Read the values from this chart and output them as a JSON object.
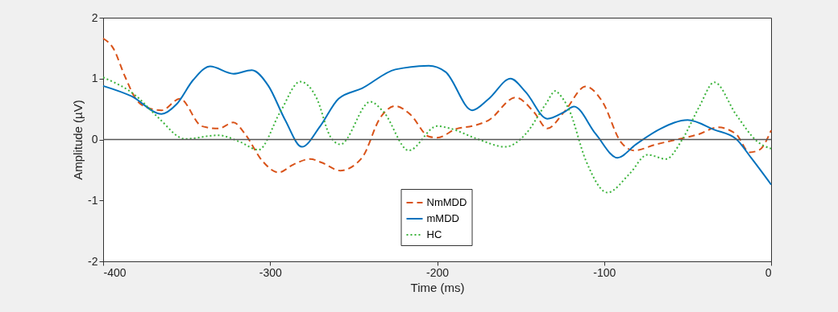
{
  "chart_data": {
    "type": "line",
    "xlabel": "Time (ms)",
    "ylabel": "Amplitude (µV)",
    "xlim": [
      -400,
      0
    ],
    "xticks": [
      -400,
      -300,
      -200,
      -100,
      0
    ],
    "ylim": [
      -2,
      2
    ],
    "yticks": [
      -2,
      -1,
      0,
      1,
      2
    ],
    "grid": false,
    "legend": "bottom",
    "marker": "none",
    "ref_lines": [
      {
        "axis": "y",
        "value": 0,
        "color": "#555555"
      }
    ],
    "series": [
      {
        "name": "NmMDD",
        "color": "#d95319",
        "line_style": "dashed",
        "x": [
          -400,
          -394,
          -387,
          -380,
          -372,
          -365,
          -354,
          -341,
          -331,
          -322,
          -315,
          -305,
          -295,
          -286,
          -276,
          -269,
          -258,
          -245,
          -234,
          -225,
          -216,
          -205,
          -200,
          -188,
          -179,
          -169,
          -153,
          -142,
          -134,
          -124,
          -111,
          -101,
          -90,
          -82,
          -69,
          -58,
          -43,
          -32,
          -21,
          -13,
          -7,
          0
        ],
        "values": [
          1.66,
          1.5,
          1.04,
          0.65,
          0.51,
          0.48,
          0.67,
          0.22,
          0.18,
          0.28,
          0.09,
          -0.34,
          -0.54,
          -0.41,
          -0.32,
          -0.38,
          -0.51,
          -0.3,
          0.36,
          0.55,
          0.41,
          0.05,
          0.03,
          0.18,
          0.22,
          0.32,
          0.69,
          0.45,
          0.18,
          0.45,
          0.87,
          0.62,
          -0.04,
          -0.18,
          -0.08,
          -0.01,
          0.09,
          0.2,
          0.09,
          -0.21,
          -0.17,
          0.15
        ]
      },
      {
        "name": "mMDD",
        "color": "#0072bd",
        "line_style": "solid",
        "x": [
          -400,
          -383,
          -365,
          -356,
          -346,
          -336,
          -322,
          -311,
          -301,
          -291,
          -281,
          -270,
          -259,
          -245,
          -225,
          -205,
          -195,
          -179,
          -169,
          -156,
          -147,
          -134,
          -124,
          -118,
          -105,
          -92,
          -81,
          -66,
          -50,
          -34,
          -21,
          -12,
          0
        ],
        "values": [
          0.88,
          0.71,
          0.42,
          0.58,
          0.98,
          1.2,
          1.08,
          1.14,
          0.88,
          0.32,
          -0.12,
          0.22,
          0.67,
          0.84,
          1.15,
          1.21,
          1.11,
          0.48,
          0.67,
          1.0,
          0.78,
          0.34,
          0.45,
          0.54,
          0.09,
          -0.3,
          -0.08,
          0.18,
          0.32,
          0.16,
          0.01,
          -0.3,
          -0.74
        ]
      },
      {
        "name": "HC",
        "color": "#3cb43c",
        "line_style": "dotted",
        "x": [
          -400,
          -380,
          -367,
          -351,
          -331,
          -318,
          -307,
          -294,
          -282,
          -272,
          -264,
          -258,
          -240,
          -232,
          -217,
          -200,
          -192,
          -176,
          -159,
          -147,
          -135,
          -129,
          -127,
          -121,
          -111,
          -98,
          -85,
          -74,
          -63,
          -53,
          -43,
          -34,
          -21,
          -8,
          0
        ],
        "values": [
          1.02,
          0.71,
          0.36,
          0.01,
          0.07,
          -0.04,
          -0.17,
          0.45,
          0.95,
          0.67,
          0.05,
          -0.08,
          0.62,
          0.45,
          -0.18,
          0.22,
          0.18,
          0.01,
          -0.12,
          0.09,
          0.58,
          0.8,
          0.75,
          0.49,
          -0.34,
          -0.87,
          -0.57,
          -0.25,
          -0.32,
          0.01,
          0.54,
          0.94,
          0.41,
          -0.04,
          -0.15
        ]
      }
    ]
  }
}
